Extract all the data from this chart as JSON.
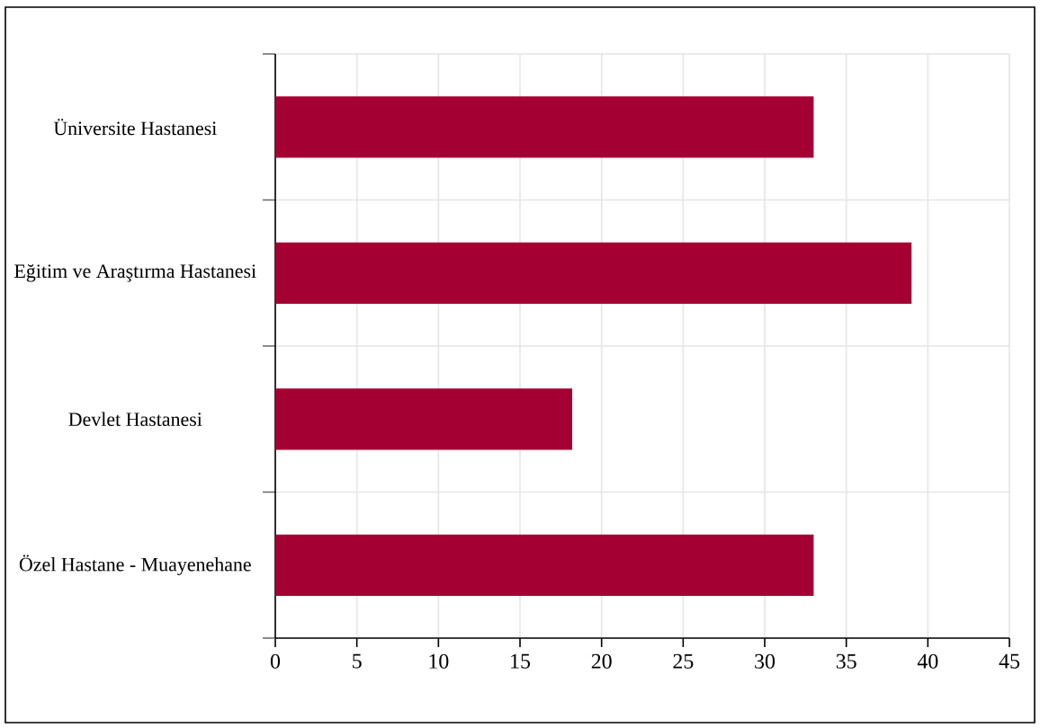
{
  "chart_data": {
    "type": "bar",
    "orientation": "horizontal",
    "categories": [
      "Üniversite Hastanesi",
      "Eğitim ve Araştırma Hastanesi",
      "Devlet Hastanesi",
      "Özel Hastane - Muayenehane"
    ],
    "values": [
      33,
      39,
      18.2,
      33
    ],
    "color": "#a50034",
    "xlim": [
      0,
      45
    ],
    "xticks": [
      0,
      5,
      10,
      15,
      20,
      25,
      30,
      35,
      40,
      45
    ],
    "grid": true
  }
}
